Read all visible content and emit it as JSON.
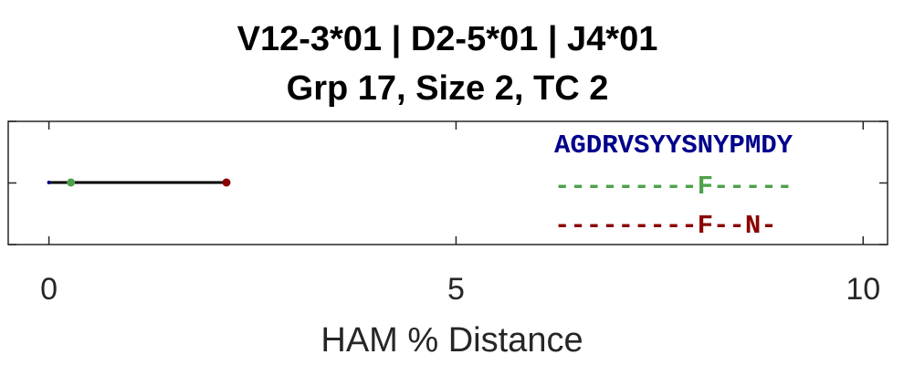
{
  "chart_data": {
    "type": "line",
    "title_lines": [
      "V12-3*01 | D2-5*01 | J4*01",
      "Grp 17, Size 2, TC 2"
    ],
    "xlabel": "HAM % Distance",
    "xlim": [
      -0.5,
      10.3
    ],
    "xticks": [
      0,
      5,
      10
    ],
    "xtick_labels": [
      "0",
      "5",
      "10"
    ],
    "tree": {
      "segments": [
        {
          "from": 0,
          "to": 0.27
        },
        {
          "from": 0.27,
          "to": 2.18
        }
      ],
      "nodes": [
        {
          "x": 0,
          "color": "#00008b"
        },
        {
          "x": 0.27,
          "color": "#4ea24a"
        },
        {
          "x": 2.18,
          "color": "#8b0000"
        }
      ]
    },
    "sequences": [
      {
        "text": "AGDRVSYYSNYPMDY",
        "color": "#00008b"
      },
      {
        "text": "---------F-----",
        "color": "#4ea24a"
      },
      {
        "text": "---------F--N-",
        "color": "#8b0000"
      }
    ]
  }
}
